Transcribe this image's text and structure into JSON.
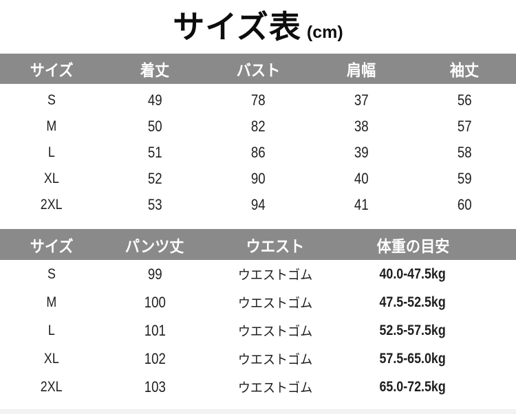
{
  "title": {
    "main": "サイズ表",
    "unit": "(cm)"
  },
  "colors": {
    "header_bg": "#8a8a8a",
    "header_text": "#ffffff",
    "text": "#1e1e1e",
    "page_bg": "#ffffff"
  },
  "tops_table": {
    "headers": [
      "サイズ",
      "着丈",
      "バスト",
      "肩幅",
      "袖丈"
    ],
    "rows": [
      [
        "S",
        "49",
        "78",
        "37",
        "56"
      ],
      [
        "M",
        "50",
        "82",
        "38",
        "57"
      ],
      [
        "L",
        "51",
        "86",
        "39",
        "58"
      ],
      [
        "XL",
        "52",
        "90",
        "40",
        "59"
      ],
      [
        "2XL",
        "53",
        "94",
        "41",
        "60"
      ]
    ]
  },
  "pants_table": {
    "headers": [
      "サイズ",
      "パンツ丈",
      "ウエスト",
      "体重の目安"
    ],
    "rows": [
      [
        "S",
        "99",
        "ウエストゴム",
        "40.0-47.5kg"
      ],
      [
        "M",
        "100",
        "ウエストゴム",
        "47.5-52.5kg"
      ],
      [
        "L",
        "101",
        "ウエストゴム",
        "52.5-57.5kg"
      ],
      [
        "XL",
        "102",
        "ウエストゴム",
        "57.5-65.0kg"
      ],
      [
        "2XL",
        "103",
        "ウエストゴム",
        "65.0-72.5kg"
      ]
    ]
  }
}
